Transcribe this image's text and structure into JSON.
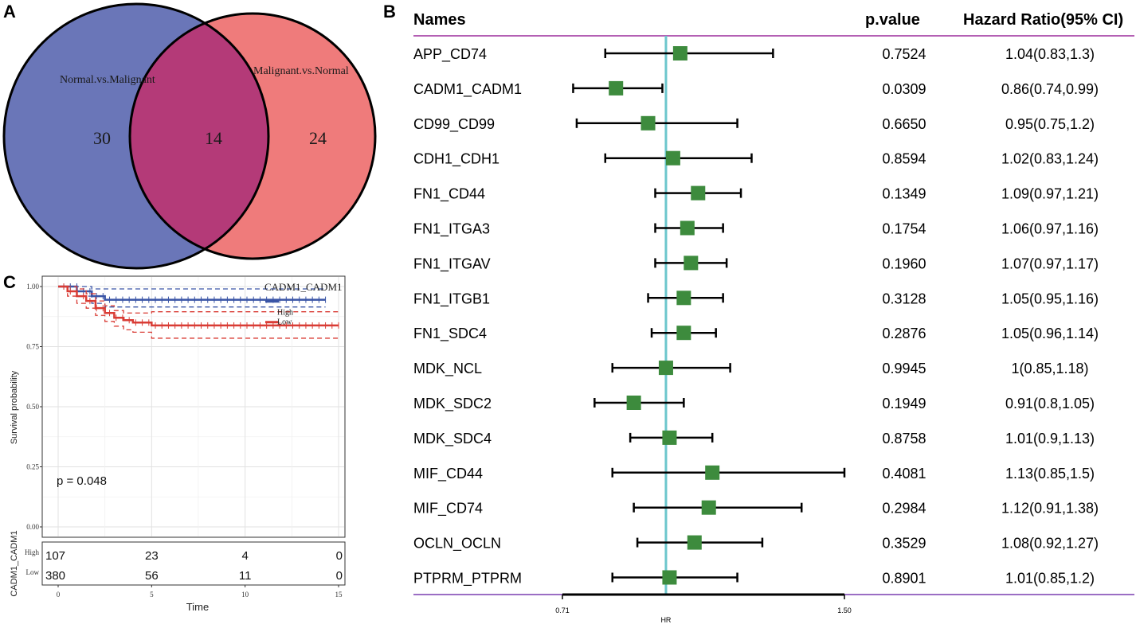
{
  "panels": {
    "a": "A",
    "b": "B",
    "c": "C"
  },
  "venn": {
    "left_label": "Normal.vs.Malignant",
    "right_label": "Malignant.vs.Normal",
    "left_only": "30",
    "overlap": "14",
    "right_only": "24",
    "colors": {
      "left": "#6a76b8",
      "right": "#ef7b7b",
      "overlap": "#b43a78"
    }
  },
  "forest": {
    "headers": {
      "names": "Names",
      "pvalue": "p.value",
      "hr": "Hazard Ratio(95% CI)"
    },
    "xlabel": "HR",
    "ticks": [
      "0.71",
      "1.50"
    ],
    "colors": {
      "box": "#3d8b3d",
      "ref_line": "#6cc6cc",
      "rule": "#9b2b9b"
    }
  },
  "chart_data": [
    {
      "type": "forest",
      "xlabel": "HR",
      "xlim": [
        0.71,
        1.5
      ],
      "reference": 1.0,
      "rows": [
        {
          "name": "APP_CD74",
          "hr": 1.04,
          "lo": 0.83,
          "hi": 1.3,
          "p": "0.7524",
          "label": "1.04(0.83,1.3)"
        },
        {
          "name": "CADM1_CADM1",
          "hr": 0.86,
          "lo": 0.74,
          "hi": 0.99,
          "p": "0.0309",
          "label": "0.86(0.74,0.99)"
        },
        {
          "name": "CD99_CD99",
          "hr": 0.95,
          "lo": 0.75,
          "hi": 1.2,
          "p": "0.6650",
          "label": "0.95(0.75,1.2)"
        },
        {
          "name": "CDH1_CDH1",
          "hr": 1.02,
          "lo": 0.83,
          "hi": 1.24,
          "p": "0.8594",
          "label": "1.02(0.83,1.24)"
        },
        {
          "name": "FN1_CD44",
          "hr": 1.09,
          "lo": 0.97,
          "hi": 1.21,
          "p": "0.1349",
          "label": "1.09(0.97,1.21)"
        },
        {
          "name": "FN1_ITGA3",
          "hr": 1.06,
          "lo": 0.97,
          "hi": 1.16,
          "p": "0.1754",
          "label": "1.06(0.97,1.16)"
        },
        {
          "name": "FN1_ITGAV",
          "hr": 1.07,
          "lo": 0.97,
          "hi": 1.17,
          "p": "0.1960",
          "label": "1.07(0.97,1.17)"
        },
        {
          "name": "FN1_ITGB1",
          "hr": 1.05,
          "lo": 0.95,
          "hi": 1.16,
          "p": "0.3128",
          "label": "1.05(0.95,1.16)"
        },
        {
          "name": "FN1_SDC4",
          "hr": 1.05,
          "lo": 0.96,
          "hi": 1.14,
          "p": "0.2876",
          "label": "1.05(0.96,1.14)"
        },
        {
          "name": "MDK_NCL",
          "hr": 1.0,
          "lo": 0.85,
          "hi": 1.18,
          "p": "0.9945",
          "label": "1(0.85,1.18)"
        },
        {
          "name": "MDK_SDC2",
          "hr": 0.91,
          "lo": 0.8,
          "hi": 1.05,
          "p": "0.1949",
          "label": "0.91(0.8,1.05)"
        },
        {
          "name": "MDK_SDC4",
          "hr": 1.01,
          "lo": 0.9,
          "hi": 1.13,
          "p": "0.8758",
          "label": "1.01(0.9,1.13)"
        },
        {
          "name": "MIF_CD44",
          "hr": 1.13,
          "lo": 0.85,
          "hi": 1.5,
          "p": "0.4081",
          "label": "1.13(0.85,1.5)"
        },
        {
          "name": "MIF_CD74",
          "hr": 1.12,
          "lo": 0.91,
          "hi": 1.38,
          "p": "0.2984",
          "label": "1.12(0.91,1.38)"
        },
        {
          "name": "OCLN_OCLN",
          "hr": 1.08,
          "lo": 0.92,
          "hi": 1.27,
          "p": "0.3529",
          "label": "1.08(0.92,1.27)"
        },
        {
          "name": "PTPRM_PTPRM",
          "hr": 1.01,
          "lo": 0.85,
          "hi": 1.2,
          "p": "0.8901",
          "label": "1.01(0.85,1.2)"
        }
      ]
    },
    {
      "type": "line",
      "subtype": "kaplan-meier",
      "title": "CADM1_CADM1",
      "xlabel": "Time",
      "ylabel": "Survival probability",
      "xlim": [
        0,
        15
      ],
      "ylim": [
        0,
        1
      ],
      "xticks": [
        "0",
        "5",
        "10",
        "15"
      ],
      "yticks": [
        "0.00",
        "0.25",
        "0.50",
        "0.75",
        "1.00"
      ],
      "pvalue_text": "p = 0.048",
      "series": [
        {
          "name": "High",
          "color": "#3a55a6",
          "x": [
            0,
            1,
            1.8,
            2.5,
            14.3
          ],
          "y": [
            1.0,
            0.98,
            0.96,
            0.945,
            0.945
          ],
          "lower": [
            1.0,
            0.96,
            0.93,
            0.915,
            0.915
          ],
          "upper": [
            1.0,
            1.0,
            0.99,
            0.99,
            0.99
          ]
        },
        {
          "name": "Low",
          "color": "#d93c35",
          "x": [
            0,
            0.5,
            1,
            1.5,
            2,
            2.5,
            3,
            3.5,
            4,
            5,
            10.5,
            15
          ],
          "y": [
            1.0,
            0.98,
            0.96,
            0.94,
            0.91,
            0.89,
            0.87,
            0.86,
            0.85,
            0.838,
            0.838,
            0.838
          ],
          "lower": [
            1.0,
            0.96,
            0.93,
            0.91,
            0.88,
            0.855,
            0.835,
            0.82,
            0.81,
            0.785,
            0.785,
            0.785
          ],
          "upper": [
            1.0,
            1.0,
            0.99,
            0.97,
            0.94,
            0.92,
            0.9,
            0.89,
            0.89,
            0.895,
            0.895,
            0.895
          ]
        }
      ],
      "risk_table": {
        "ylabel": "CADM1_CADM1",
        "times": [
          "0",
          "5",
          "10",
          "15"
        ],
        "rows": [
          {
            "name": "High",
            "values": [
              "107",
              "23",
              "4",
              "0"
            ]
          },
          {
            "name": "Low",
            "values": [
              "380",
              "56",
              "11",
              "0"
            ]
          }
        ]
      }
    }
  ]
}
